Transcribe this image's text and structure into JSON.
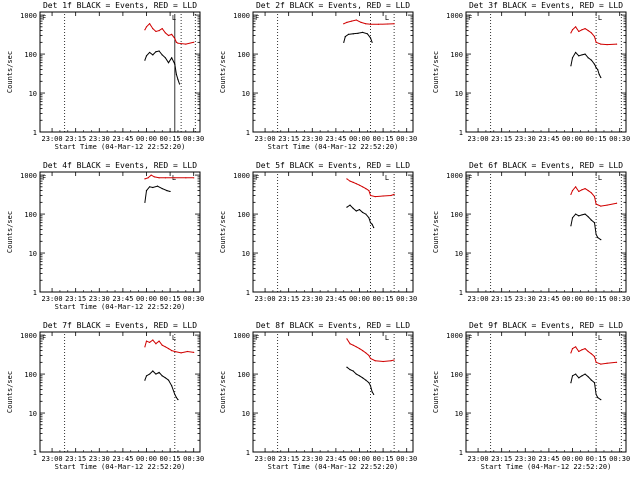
{
  "chart_data": [
    {
      "type": "line",
      "title": "Det 1f BLACK = Events, RED = LLD",
      "xlabel": "Start Time (04-Mar-12 22:52:20)",
      "ylabel": "Counts/sec",
      "ylim": [
        1,
        1200
      ],
      "yscale": "log",
      "xticks": [
        "23:00",
        "23:15",
        "23:30",
        "23:45",
        "00:00",
        "00:15",
        "00:30"
      ],
      "yticks": [
        "1",
        "10",
        "100",
        "1000"
      ],
      "markers": {
        "dotted_at": [
          "23:08",
          "00:22",
          "00:31"
        ],
        "solid_at": [
          "00:18"
        ]
      },
      "flags": [
        "F",
        "L"
      ],
      "series": [
        {
          "color": "#000000",
          "x": [
            "23:59",
            "00:00",
            "00:02",
            "00:04",
            "00:06",
            "00:08",
            "00:10",
            "00:12",
            "00:14",
            "00:16",
            "00:18",
            "00:19",
            "00:20",
            "00:21"
          ],
          "y": [
            70,
            90,
            110,
            95,
            115,
            120,
            95,
            80,
            60,
            80,
            55,
            30,
            22,
            17
          ]
        },
        {
          "color": "#d00000",
          "x": [
            "23:59",
            "00:00",
            "00:02",
            "00:04",
            "00:06",
            "00:08",
            "00:10",
            "00:12",
            "00:14",
            "00:16",
            "00:18",
            "00:19",
            "00:20",
            "00:25",
            "00:30"
          ],
          "y": [
            420,
            500,
            600,
            450,
            380,
            400,
            450,
            350,
            300,
            320,
            250,
            200,
            190,
            180,
            200
          ]
        }
      ]
    },
    {
      "type": "line",
      "title": "Det 2f BLACK = Events, RED = LLD",
      "xlabel": "Start Time (04-Mar-12 22:52:20)",
      "ylabel": "Counts/sec",
      "ylim": [
        1,
        1200
      ],
      "yscale": "log",
      "xticks": [
        "23:00",
        "23:15",
        "23:30",
        "23:45",
        "00:00",
        "00:15",
        "00:30"
      ],
      "yticks": [
        "1",
        "10",
        "100",
        "1000"
      ],
      "markers": {
        "dotted_at": [
          "23:08",
          "00:07",
          "00:22"
        ],
        "solid_at": []
      },
      "flags": [
        "F",
        "L"
      ],
      "series": [
        {
          "color": "#000000",
          "x": [
            "23:50",
            "23:51",
            "23:53",
            "23:56",
            "23:59",
            "00:02",
            "00:05",
            "00:07",
            "00:08"
          ],
          "y": [
            200,
            280,
            320,
            330,
            340,
            360,
            330,
            260,
            200
          ]
        },
        {
          "color": "#d00000",
          "x": [
            "23:50",
            "23:52",
            "23:55",
            "23:58",
            "00:01",
            "00:04",
            "00:07",
            "00:12",
            "00:18",
            "00:22"
          ],
          "y": [
            600,
            650,
            700,
            750,
            650,
            600,
            580,
            580,
            590,
            600
          ]
        }
      ]
    },
    {
      "type": "line",
      "title": "Det 3f BLACK = Events, RED = LLD",
      "xlabel": "",
      "ylabel": "Counts/sec",
      "ylim": [
        1,
        1200
      ],
      "yscale": "log",
      "xticks": [
        "23:00",
        "23:15",
        "23:30",
        "23:45",
        "00:00",
        "00:15",
        "00:30"
      ],
      "yticks": [
        "1",
        "10",
        "100",
        "1000"
      ],
      "markers": {
        "dotted_at": [
          "23:08",
          "00:15",
          "00:31"
        ],
        "solid_at": []
      },
      "flags": [
        "F",
        "L"
      ],
      "series": [
        {
          "color": "#000000",
          "x": [
            "23:59",
            "00:00",
            "00:02",
            "00:04",
            "00:06",
            "00:08",
            "00:10",
            "00:12",
            "00:14",
            "00:15",
            "00:16",
            "00:17",
            "00:18"
          ],
          "y": [
            50,
            80,
            110,
            90,
            95,
            100,
            80,
            70,
            55,
            45,
            40,
            30,
            25
          ]
        },
        {
          "color": "#d00000",
          "x": [
            "23:59",
            "00:00",
            "00:02",
            "00:04",
            "00:06",
            "00:08",
            "00:10",
            "00:12",
            "00:14",
            "00:15",
            "00:18",
            "00:22",
            "00:28"
          ],
          "y": [
            350,
            420,
            500,
            380,
            420,
            450,
            400,
            350,
            280,
            200,
            180,
            175,
            180
          ]
        }
      ]
    },
    {
      "type": "line",
      "title": "Det 4f BLACK = Events, RED = LLD",
      "xlabel": "Start Time (04-Mar-12 22:52:20)",
      "ylabel": "Counts/sec",
      "ylim": [
        1,
        1200
      ],
      "yscale": "log",
      "xticks": [
        "23:00",
        "23:15",
        "23:30",
        "23:45",
        "00:00",
        "00:15",
        "00:30"
      ],
      "yticks": [
        "1",
        "10",
        "100",
        "1000"
      ],
      "markers": {
        "dotted_at": [],
        "solid_at": []
      },
      "flags": [
        "F",
        "L"
      ],
      "series": [
        {
          "color": "#000000",
          "x": [
            "23:59",
            "00:00",
            "00:02",
            "00:04",
            "00:07",
            "00:10",
            "00:13",
            "00:15"
          ],
          "y": [
            200,
            400,
            500,
            480,
            520,
            450,
            400,
            380
          ]
        },
        {
          "color": "#d00000",
          "x": [
            "23:59",
            "00:01",
            "00:03",
            "00:05",
            "00:08",
            "00:12",
            "00:18",
            "00:25",
            "00:30"
          ],
          "y": [
            800,
            850,
            1000,
            900,
            850,
            850,
            850,
            850,
            850
          ]
        }
      ]
    },
    {
      "type": "line",
      "title": "Det 5f BLACK = Events, RED = LLD",
      "xlabel": "",
      "ylabel": "Counts/sec",
      "ylim": [
        1,
        1200
      ],
      "yscale": "log",
      "xticks": [
        "23:00",
        "23:15",
        "23:30",
        "23:45",
        "00:00",
        "00:15",
        "00:30"
      ],
      "yticks": [
        "1",
        "10",
        "100",
        "1000"
      ],
      "markers": {
        "dotted_at": [
          "23:08",
          "00:07",
          "00:22"
        ],
        "solid_at": []
      },
      "flags": [
        "F",
        "L"
      ],
      "series": [
        {
          "color": "#000000",
          "x": [
            "23:52",
            "23:54",
            "23:56",
            "23:58",
            "00:00",
            "00:02",
            "00:04",
            "00:06",
            "00:07",
            "00:08",
            "00:09"
          ],
          "y": [
            150,
            170,
            140,
            120,
            130,
            110,
            100,
            80,
            60,
            55,
            45
          ]
        },
        {
          "color": "#d00000",
          "x": [
            "23:52",
            "23:54",
            "23:56",
            "23:58",
            "00:00",
            "00:02",
            "00:04",
            "00:06",
            "00:07",
            "00:10",
            "00:15",
            "00:20",
            "00:22"
          ],
          "y": [
            800,
            700,
            650,
            600,
            550,
            500,
            450,
            400,
            300,
            280,
            290,
            300,
            320
          ]
        }
      ]
    },
    {
      "type": "line",
      "title": "Det 6f BLACK = Events, RED = LLD",
      "xlabel": "",
      "ylabel": "Counts/sec",
      "ylim": [
        1,
        1200
      ],
      "yscale": "log",
      "xticks": [
        "23:00",
        "23:15",
        "23:30",
        "23:45",
        "00:00",
        "00:15",
        "00:30"
      ],
      "yticks": [
        "1",
        "10",
        "100",
        "1000"
      ],
      "markers": {
        "dotted_at": [
          "23:08",
          "00:15",
          "00:31"
        ],
        "solid_at": []
      },
      "flags": [
        "F",
        "L"
      ],
      "series": [
        {
          "color": "#000000",
          "x": [
            "23:59",
            "00:00",
            "00:02",
            "00:04",
            "00:06",
            "00:08",
            "00:10",
            "00:12",
            "00:14",
            "00:15",
            "00:16",
            "00:18"
          ],
          "y": [
            50,
            80,
            100,
            90,
            95,
            100,
            85,
            70,
            60,
            30,
            25,
            22
          ]
        },
        {
          "color": "#d00000",
          "x": [
            "23:59",
            "00:00",
            "00:02",
            "00:04",
            "00:06",
            "00:08",
            "00:10",
            "00:12",
            "00:14",
            "00:15",
            "00:18",
            "00:22",
            "00:28"
          ],
          "y": [
            320,
            400,
            500,
            380,
            420,
            450,
            400,
            350,
            280,
            180,
            160,
            170,
            190
          ]
        }
      ]
    },
    {
      "type": "line",
      "title": "Det 7f BLACK = Events, RED = LLD",
      "xlabel": "Start Time (04-Mar-12 22:52:20)",
      "ylabel": "Counts/sec",
      "ylim": [
        1,
        1200
      ],
      "yscale": "log",
      "xticks": [
        "23:00",
        "23:15",
        "23:30",
        "23:45",
        "00:00",
        "00:15",
        "00:30"
      ],
      "yticks": [
        "1",
        "10",
        "100",
        "1000"
      ],
      "markers": {
        "dotted_at": [
          "23:08",
          "00:18"
        ],
        "solid_at": []
      },
      "flags": [
        "F",
        "L"
      ],
      "series": [
        {
          "color": "#000000",
          "x": [
            "23:59",
            "00:00",
            "00:02",
            "00:04",
            "00:06",
            "00:08",
            "00:10",
            "00:12",
            "00:14",
            "00:16",
            "00:18",
            "00:19",
            "00:20"
          ],
          "y": [
            70,
            90,
            100,
            120,
            100,
            110,
            90,
            80,
            70,
            50,
            30,
            25,
            22
          ]
        },
        {
          "color": "#d00000",
          "x": [
            "23:59",
            "00:00",
            "00:02",
            "00:04",
            "00:06",
            "00:08",
            "00:10",
            "00:12",
            "00:14",
            "00:16",
            "00:18",
            "00:22",
            "00:26",
            "00:30"
          ],
          "y": [
            500,
            700,
            650,
            750,
            600,
            700,
            550,
            500,
            450,
            400,
            380,
            350,
            380,
            360
          ]
        }
      ]
    },
    {
      "type": "line",
      "title": "Det 8f BLACK = Events, RED = LLD",
      "xlabel": "Start Time (04-Mar-12 22:52:20)",
      "ylabel": "Counts/sec",
      "ylim": [
        1,
        1200
      ],
      "yscale": "log",
      "xticks": [
        "23:00",
        "23:15",
        "23:30",
        "23:45",
        "00:00",
        "00:15",
        "00:30"
      ],
      "yticks": [
        "1",
        "10",
        "100",
        "1000"
      ],
      "markers": {
        "dotted_at": [
          "23:08",
          "00:07",
          "00:22"
        ],
        "solid_at": []
      },
      "flags": [
        "F",
        "L"
      ],
      "series": [
        {
          "color": "#000000",
          "x": [
            "23:52",
            "23:54",
            "23:56",
            "23:58",
            "00:00",
            "00:02",
            "00:04",
            "00:06",
            "00:07",
            "00:08",
            "00:09"
          ],
          "y": [
            150,
            130,
            120,
            100,
            90,
            80,
            70,
            60,
            50,
            35,
            30
          ]
        },
        {
          "color": "#d00000",
          "x": [
            "23:52",
            "23:54",
            "23:56",
            "23:58",
            "00:00",
            "00:02",
            "00:04",
            "00:06",
            "00:07",
            "00:10",
            "00:15",
            "00:20",
            "00:22"
          ],
          "y": [
            800,
            600,
            550,
            500,
            450,
            400,
            350,
            300,
            250,
            220,
            210,
            220,
            230
          ]
        }
      ]
    },
    {
      "type": "line",
      "title": "Det 9f BLACK = Events, RED = LLD",
      "xlabel": "Start Time (04-Mar-12 22:52:20)",
      "ylabel": "Counts/sec",
      "ylim": [
        1,
        1200
      ],
      "yscale": "log",
      "xticks": [
        "23:00",
        "23:15",
        "23:30",
        "23:45",
        "00:00",
        "00:15",
        "00:30"
      ],
      "yticks": [
        "1",
        "10",
        "100",
        "1000"
      ],
      "markers": {
        "dotted_at": [
          "23:08",
          "00:15",
          "00:31"
        ],
        "solid_at": []
      },
      "flags": [
        "F",
        "L"
      ],
      "series": [
        {
          "color": "#000000",
          "x": [
            "23:59",
            "00:00",
            "00:02",
            "00:04",
            "00:06",
            "00:08",
            "00:10",
            "00:12",
            "00:14",
            "00:15",
            "00:16",
            "00:18"
          ],
          "y": [
            60,
            90,
            100,
            80,
            90,
            100,
            85,
            70,
            60,
            30,
            25,
            22
          ]
        },
        {
          "color": "#d00000",
          "x": [
            "23:59",
            "00:00",
            "00:02",
            "00:04",
            "00:06",
            "00:08",
            "00:10",
            "00:12",
            "00:14",
            "00:15",
            "00:18",
            "00:22",
            "00:28"
          ],
          "y": [
            350,
            450,
            500,
            380,
            420,
            450,
            380,
            330,
            280,
            200,
            180,
            190,
            200
          ]
        }
      ]
    }
  ]
}
